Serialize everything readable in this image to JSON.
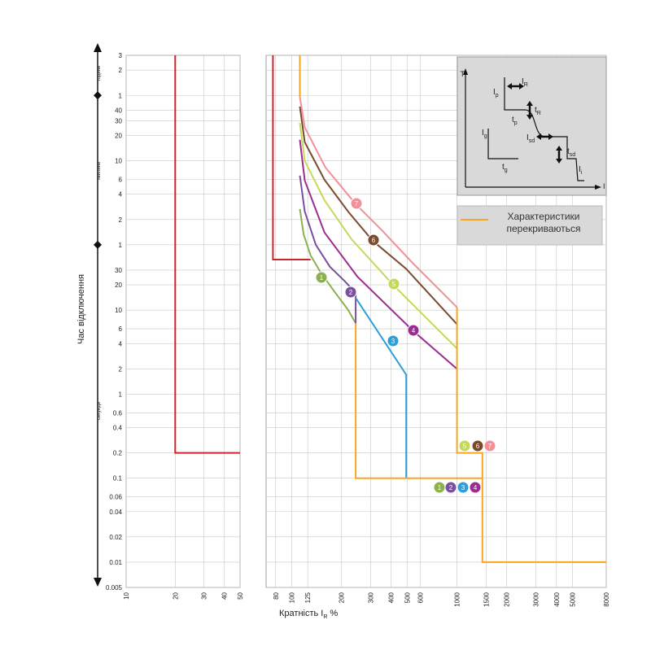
{
  "chart_data": [
    {
      "type": "line",
      "xscale": "log",
      "yscale": "log",
      "grid": true,
      "y_label": "Час відключення",
      "y_units": [
        "години",
        "хвилини",
        "секунди"
      ],
      "xlim": [
        10,
        50
      ],
      "xticks": [
        10,
        20,
        30,
        40,
        50
      ],
      "ylim": [
        0.005,
        10800
      ],
      "yticks": [
        {
          "value": 10800,
          "label": "3"
        },
        {
          "value": 7200,
          "label": "2"
        },
        {
          "value": 3600,
          "label": "1"
        },
        {
          "value": 2400,
          "label": "40"
        },
        {
          "value": 1800,
          "label": "30"
        },
        {
          "value": 1200,
          "label": "20"
        },
        {
          "value": 600,
          "label": "10"
        },
        {
          "value": 360,
          "label": "6"
        },
        {
          "value": 240,
          "label": "4"
        },
        {
          "value": 120,
          "label": "2"
        },
        {
          "value": 60,
          "label": "1"
        },
        30,
        20,
        10,
        6,
        4,
        2,
        1,
        0.6,
        0.4,
        0.2,
        0.1,
        0.06,
        0.04,
        0.02,
        0.01,
        0.005
      ],
      "series": [
        {
          "color": "#c8262c",
          "x": [
            20,
            20,
            50
          ],
          "values": [
            10800,
            0.2,
            0.2
          ]
        }
      ]
    },
    {
      "type": "line",
      "xscale": "log",
      "yscale": "log",
      "grid": true,
      "x_label": {
        "text": "Кратність I",
        "sub": "R",
        "unit": "%"
      },
      "xlim": [
        70,
        8000
      ],
      "xticks": [
        80,
        100,
        125,
        200,
        300,
        400,
        500,
        600,
        1000,
        1500,
        2000,
        3000,
        4000,
        5000,
        8000
      ],
      "ylim": [
        0.005,
        10800
      ],
      "yticks": [
        10800,
        7200,
        3600,
        2400,
        1800,
        1200,
        600,
        360,
        240,
        120,
        60,
        30,
        20,
        10,
        6,
        4,
        2,
        1,
        0.6,
        0.4,
        0.2,
        0.1,
        0.06,
        0.04,
        0.02,
        0.01,
        0.005
      ],
      "series": [
        {
          "color": "#c8262c",
          "x": [
            77,
            77,
            130
          ],
          "values": [
            10800,
            40,
            40
          ]
        },
        {
          "name": "1",
          "color": "#8db04e",
          "x": [
            112,
            118,
            130,
            150,
            180,
            220,
            244
          ],
          "values": [
            160,
            80,
            45,
            28,
            17,
            10,
            7
          ]
        },
        {
          "name": "2",
          "color": "#7b4fa0",
          "x": [
            112,
            120,
            140,
            170,
            210,
            244,
            244
          ],
          "values": [
            400,
            150,
            60,
            33,
            22,
            16,
            7
          ]
        },
        {
          "name": "3",
          "color": "#2e9fd8",
          "x": [
            244,
            493,
            493
          ],
          "values": [
            14,
            1.7,
            0.1
          ]
        },
        {
          "name": "4",
          "color": "#9b2d91",
          "x": [
            112,
            120,
            158,
            250,
            541,
            1000
          ],
          "values": [
            1070,
            350,
            84,
            25,
            5.7,
            2
          ]
        },
        {
          "name": "5",
          "color": "#c5d85a",
          "x": [
            112,
            120,
            158,
            230,
            411,
            1000
          ],
          "values": [
            1700,
            600,
            203,
            70,
            20,
            3.5
          ]
        },
        {
          "name": "6",
          "color": "#7b4a2d",
          "x": [
            112,
            120,
            158,
            222,
            309,
            493,
            1000
          ],
          "values": [
            2650,
            1000,
            356,
            145,
            67,
            31,
            6.8
          ]
        },
        {
          "name": "7",
          "color": "#f19199",
          "x": [
            112,
            120,
            160,
            244,
            350,
            550,
            1000
          ],
          "values": [
            3450,
            1500,
            500,
            183,
            90,
            35,
            10.8
          ]
        },
        {
          "name": "Характеристики перекриваються",
          "color": "#f5a623",
          "x": [
            112,
            112,
            null,
            1000,
            1000,
            1425,
            1425,
            8000,
            null,
            244,
            244,
            1425,
            1425
          ],
          "values": [
            10800,
            3450,
            null,
            10.8,
            0.2,
            0.2,
            0.01,
            0.01,
            null,
            7,
            0.1,
            0.1,
            0.2
          ]
        }
      ],
      "inset": {
        "axis_y": "T",
        "axis_x": "I",
        "labels": [
          {
            "main": "I",
            "sub": "R"
          },
          {
            "main": "t",
            "sub": "R"
          },
          {
            "main": "I",
            "sub": "p"
          },
          {
            "main": "t",
            "sub": "p"
          },
          {
            "main": "I",
            "sub": "g"
          },
          {
            "main": "t",
            "sub": "g"
          },
          {
            "main": "I",
            "sub": "sd"
          },
          {
            "main": "t",
            "sub": "sd"
          },
          {
            "main": "I",
            "sub": "i"
          }
        ]
      }
    }
  ]
}
